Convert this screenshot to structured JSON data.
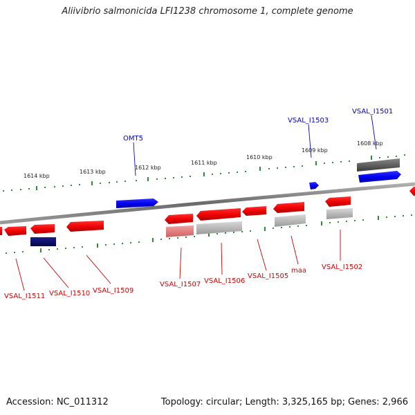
{
  "title": "Aliivibrio salmonicida LFI1238 chromosome 1, complete genome",
  "footer": {
    "accession": "Accession: NC_011312",
    "topology": "Topology: circular; Length: 3,325,165 bp; Genes: 2,966"
  },
  "colors": {
    "backbone": "#808080",
    "tick": "#2e8b2e",
    "forward_label": "#0000cc",
    "reverse_label": "#cc0000"
  },
  "kbp_labels": [
    "1614 kbp",
    "1613 kbp",
    "1612 kbp",
    "1611 kbp",
    "1610 kbp",
    "1609 kbp",
    "1608 kbp"
  ],
  "gene_labels": {
    "forward": [
      "OMT5",
      "VSAL_I1503",
      "VSAL_I1501"
    ],
    "reverse": [
      "VSAL_I1511",
      "VSAL_I1510",
      "VSAL_I1509",
      "VSAL_I1507",
      "VSAL_I1506",
      "VSAL_I1505",
      "maa",
      "VSAL_I1502"
    ]
  }
}
